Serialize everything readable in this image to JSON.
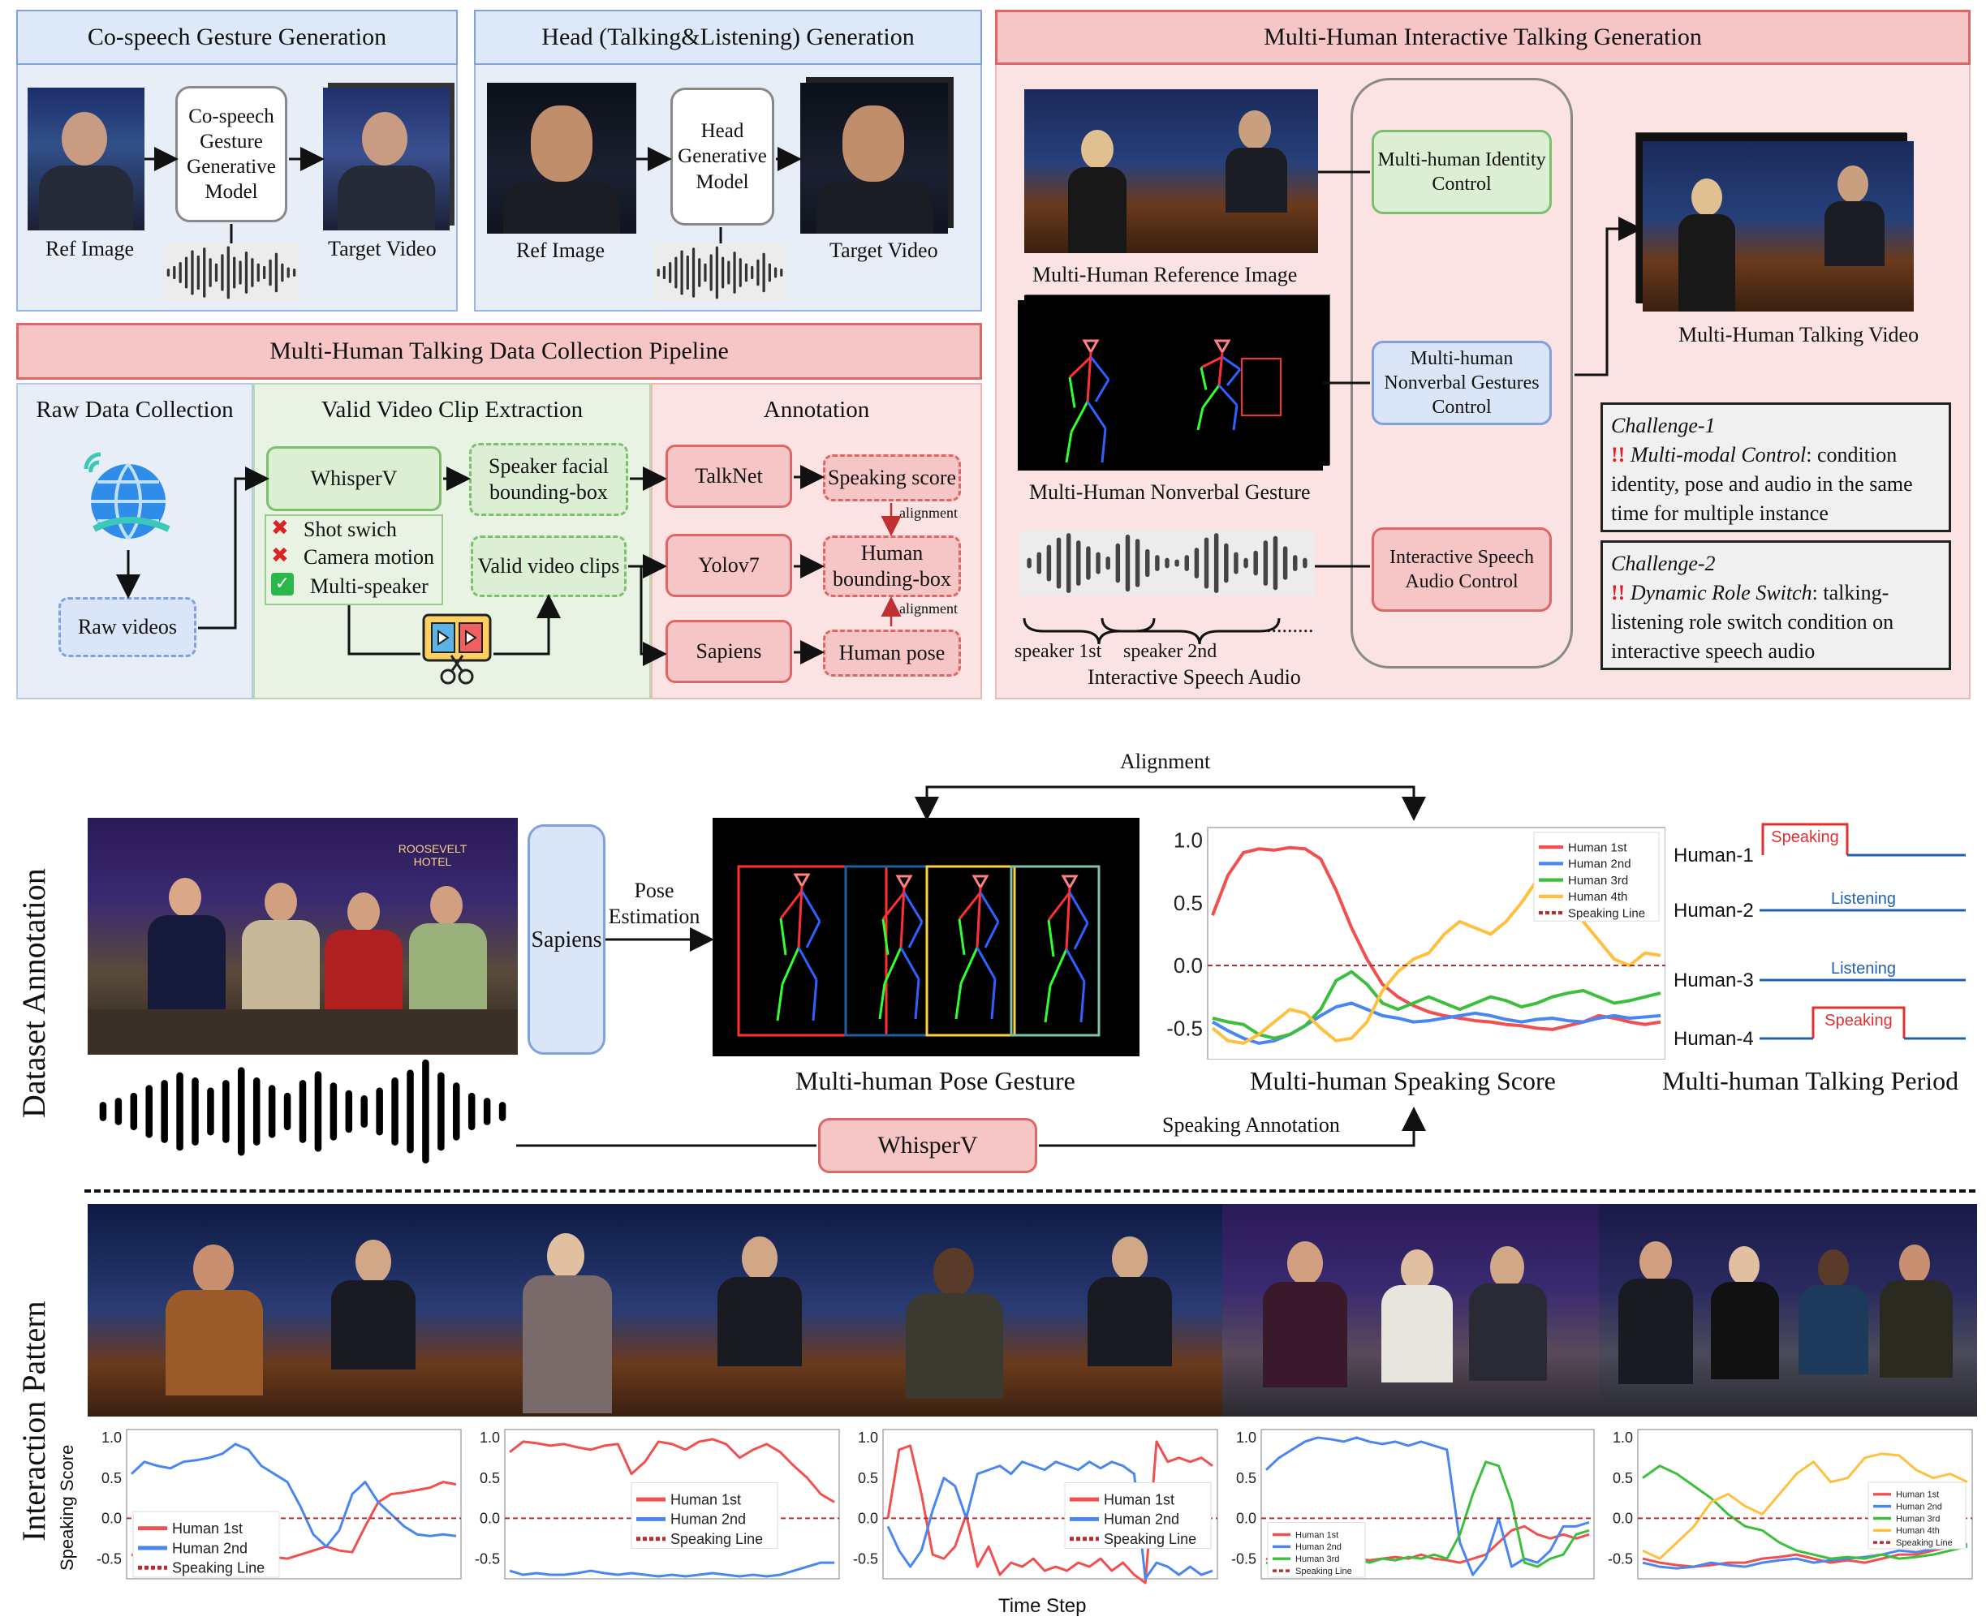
{
  "top": {
    "gesture": {
      "title": "Co-speech Gesture Generation",
      "model": "Co-speech Gesture Generative Model",
      "ref": "Ref Image",
      "target": "Target Video"
    },
    "head": {
      "title": "Head (Talking&Listening) Generation",
      "model": "Head Generative Model",
      "ref": "Ref Image",
      "target": "Target Video"
    },
    "pipeline": {
      "title": "Multi-Human Talking Data Collection Pipeline",
      "raw_header": "Raw Data Collection",
      "valid_header": "Valid Video Clip Extraction",
      "anno_header": "Annotation",
      "raw_videos": "Raw videos",
      "whisperv": "WhisperV",
      "speaker_bbox": "Speaker facial bounding-box",
      "valid_clips": "Valid video clips",
      "filters": [
        "Shot swich",
        "Camera motion",
        "Multi-speaker"
      ],
      "talknet": "TalkNet",
      "yolov7": "Yolov7",
      "sapiens": "Sapiens",
      "speaking_score": "Speaking score",
      "human_bbox": "Human bounding-box",
      "human_pose": "Human pose",
      "alignment": "alignment"
    },
    "interactive": {
      "title": "Multi-Human Interactive Talking Generation",
      "ref_image_label": "Multi-Human Reference Image",
      "gesture_label": "Multi-Human Nonverbal Gesture",
      "speaker1": "speaker 1st",
      "speaker2": "speaker 2nd",
      "audio_label": "Interactive Speech Audio",
      "dots": ".........",
      "identity_control": "Multi-human Identity Control",
      "gesture_control": "Multi-human Nonverbal Gestures Control",
      "audio_control": "Interactive Speech Audio Control",
      "video_label": "Multi-Human Talking Video",
      "challenge1_title": "Challenge-1",
      "challenge1_key": "Multi-modal Control",
      "challenge1_text": ": condition identity, pose and audio in the same time for multiple instance",
      "challenge2_title": "Challenge-2",
      "challenge2_key": "Dynamic Role Switch",
      "challenge2_text": ": talking-listening role switch condition on interactive speech audio",
      "bang": "!!"
    }
  },
  "middle": {
    "side_label": "Dataset Annotation",
    "sapiens": "Sapiens",
    "pose_estimation": "Pose Estimation",
    "alignment": "Alignment",
    "whisperv": "WhisperV",
    "speaking_annotation": "Speaking Annotation",
    "pose_caption": "Multi-human Pose Gesture",
    "score_caption": "Multi-human Speaking Score",
    "period_caption": "Multi-human Talking Period",
    "period_rows": [
      {
        "human": "Human-1",
        "state": "Speaking"
      },
      {
        "human": "Human-2",
        "state": "Listening"
      },
      {
        "human": "Human-3",
        "state": "Listening"
      },
      {
        "human": "Human-4",
        "state": "Speaking"
      }
    ],
    "sign": "ROOSEVELT HOTEL"
  },
  "bottom": {
    "side_label": "Interaction Pattern",
    "y_label": "Speaking Score",
    "x_label": "Time Step"
  },
  "colors": {
    "red": "#f05050",
    "blue": "#4a86f0",
    "green": "#3cbf3c",
    "orange": "#ffc040",
    "speaking_line": "#b03030",
    "pink_panel": "#fbe3e3",
    "blue_panel": "#e8eef8",
    "green_panel": "#e8f3e4"
  },
  "chart_data": [
    {
      "type": "line",
      "ylim": [
        -0.75,
        1.1
      ],
      "yticks": [
        "1.0",
        "0.5",
        "0.0",
        "-0.5"
      ],
      "legend_position": "top-right",
      "series": [
        {
          "name": "Human 1st",
          "values": [
            0.4,
            0.72,
            0.9,
            0.93,
            0.92,
            0.94,
            0.93,
            0.85,
            0.6,
            0.3,
            0.05,
            -0.15,
            -0.25,
            -0.32,
            -0.37,
            -0.4,
            -0.42,
            -0.44,
            -0.45,
            -0.47,
            -0.48,
            -0.5,
            -0.51,
            -0.48,
            -0.45,
            -0.4,
            -0.42,
            -0.45,
            -0.47,
            -0.45
          ]
        },
        {
          "name": "Human 2nd",
          "values": [
            -0.45,
            -0.52,
            -0.58,
            -0.62,
            -0.6,
            -0.55,
            -0.48,
            -0.4,
            -0.33,
            -0.3,
            -0.35,
            -0.4,
            -0.42,
            -0.45,
            -0.44,
            -0.42,
            -0.4,
            -0.38,
            -0.4,
            -0.43,
            -0.45,
            -0.43,
            -0.42,
            -0.44,
            -0.45,
            -0.42,
            -0.4,
            -0.42,
            -0.41,
            -0.4
          ]
        },
        {
          "name": "Human 3rd",
          "values": [
            -0.42,
            -0.45,
            -0.47,
            -0.55,
            -0.58,
            -0.55,
            -0.48,
            -0.35,
            -0.12,
            -0.05,
            -0.15,
            -0.3,
            -0.35,
            -0.3,
            -0.25,
            -0.3,
            -0.35,
            -0.3,
            -0.25,
            -0.28,
            -0.33,
            -0.3,
            -0.25,
            -0.22,
            -0.2,
            -0.25,
            -0.3,
            -0.28,
            -0.25,
            -0.22
          ]
        },
        {
          "name": "Human 4th",
          "values": [
            -0.5,
            -0.6,
            -0.62,
            -0.55,
            -0.45,
            -0.35,
            -0.38,
            -0.5,
            -0.6,
            -0.58,
            -0.45,
            -0.2,
            -0.05,
            0.05,
            0.1,
            0.25,
            0.35,
            0.3,
            0.25,
            0.35,
            0.5,
            0.68,
            0.72,
            0.55,
            0.35,
            0.2,
            0.05,
            0.0,
            0.1,
            0.08
          ]
        },
        {
          "name": "Speaking Line",
          "values": [
            0.0,
            0.0
          ]
        }
      ]
    },
    {
      "type": "line",
      "ylim": [
        -0.75,
        1.1
      ],
      "yticks": [
        "1.0",
        "0.5",
        "0.0",
        "-0.5"
      ],
      "legend_position": "bottom-left",
      "series": [
        {
          "name": "Human 1st",
          "values": [
            -0.45,
            -0.5,
            -0.55,
            -0.52,
            -0.55,
            -0.58,
            -0.52,
            -0.5,
            -0.55,
            -0.5,
            -0.45,
            -0.48,
            -0.5,
            -0.45,
            -0.4,
            -0.35,
            -0.4,
            -0.42,
            -0.1,
            0.2,
            0.3,
            0.32,
            0.35,
            0.38,
            0.45,
            0.42
          ]
        },
        {
          "name": "Human 2nd",
          "values": [
            0.55,
            0.7,
            0.65,
            0.62,
            0.7,
            0.72,
            0.75,
            0.8,
            0.92,
            0.85,
            0.65,
            0.55,
            0.45,
            0.15,
            -0.2,
            -0.35,
            -0.15,
            0.3,
            0.45,
            0.2,
            0.05,
            -0.1,
            -0.2,
            -0.22,
            -0.2,
            -0.22
          ]
        },
        {
          "name": "Speaking Line",
          "values": [
            0.0,
            0.0
          ]
        }
      ]
    },
    {
      "type": "line",
      "ylim": [
        -0.75,
        1.1
      ],
      "yticks": [
        "1.0",
        "0.5",
        "0.0",
        "-0.5"
      ],
      "legend_position": "center",
      "series": [
        {
          "name": "Human 1st",
          "values": [
            0.82,
            0.95,
            0.93,
            0.9,
            0.92,
            0.88,
            0.85,
            0.9,
            0.92,
            0.55,
            0.7,
            0.95,
            0.92,
            0.85,
            0.95,
            0.98,
            0.92,
            0.75,
            0.85,
            0.92,
            0.82,
            0.65,
            0.5,
            0.3,
            0.2
          ]
        },
        {
          "name": "Human 2nd",
          "values": [
            -0.65,
            -0.7,
            -0.68,
            -0.7,
            -0.7,
            -0.68,
            -0.65,
            -0.68,
            -0.7,
            -0.68,
            -0.7,
            -0.72,
            -0.7,
            -0.72,
            -0.7,
            -0.68,
            -0.7,
            -0.72,
            -0.7,
            -0.72,
            -0.7,
            -0.65,
            -0.6,
            -0.55,
            -0.55
          ]
        },
        {
          "name": "Speaking Line",
          "values": [
            0.0,
            0.0
          ]
        }
      ]
    },
    {
      "type": "line",
      "ylim": [
        -0.75,
        1.1
      ],
      "yticks": [
        "1.0",
        "0.5",
        "0.0",
        "-0.5"
      ],
      "legend_position": "right",
      "series": [
        {
          "name": "Human 1st",
          "values": [
            0.0,
            0.85,
            0.9,
            0.3,
            -0.45,
            -0.5,
            -0.35,
            0.05,
            -0.6,
            -0.35,
            -0.7,
            -0.55,
            -0.6,
            -0.5,
            -0.65,
            -0.6,
            -0.65,
            -0.55,
            -0.6,
            -0.5,
            -0.65,
            -0.55,
            -0.7,
            -0.8,
            0.95,
            0.7,
            0.75,
            0.7,
            0.75,
            0.65
          ]
        },
        {
          "name": "Human 2nd",
          "values": [
            -0.1,
            -0.4,
            -0.6,
            -0.4,
            0.1,
            0.5,
            0.4,
            0.0,
            0.55,
            0.6,
            0.65,
            0.55,
            0.7,
            0.65,
            0.6,
            0.7,
            0.65,
            0.6,
            0.7,
            0.62,
            0.7,
            0.65,
            0.55,
            -0.75,
            -0.55,
            -0.6,
            -0.7,
            -0.6,
            -0.7,
            -0.65
          ]
        },
        {
          "name": "Speaking Line",
          "values": [
            0.0,
            0.0
          ]
        }
      ]
    },
    {
      "type": "line",
      "ylim": [
        -0.75,
        1.1
      ],
      "yticks": [
        "1.0",
        "0.5",
        "0.0",
        "-0.5"
      ],
      "legend_position": "bottom-left",
      "series": [
        {
          "name": "Human 1st",
          "values": [
            -0.5,
            -0.55,
            -0.52,
            -0.5,
            -0.55,
            -0.5,
            -0.48,
            -0.5,
            -0.52,
            -0.5,
            -0.48,
            -0.5,
            -0.45,
            -0.5,
            -0.52,
            -0.55,
            -0.5,
            -0.45,
            -0.3,
            -0.15,
            -0.1,
            -0.2,
            -0.25,
            -0.2,
            -0.25,
            -0.2
          ]
        },
        {
          "name": "Human 2nd",
          "values": [
            0.6,
            0.75,
            0.85,
            0.95,
            1.0,
            0.98,
            0.95,
            1.0,
            0.95,
            0.92,
            0.95,
            0.9,
            0.95,
            0.9,
            0.85,
            -0.3,
            -0.7,
            -0.5,
            0.0,
            -0.6,
            -0.5,
            -0.55,
            -0.4,
            -0.1,
            -0.1,
            -0.05
          ]
        },
        {
          "name": "Human 3rd",
          "values": [
            -0.55,
            -0.6,
            -0.55,
            -0.6,
            -0.55,
            -0.58,
            -0.55,
            -0.5,
            -0.55,
            -0.5,
            -0.52,
            -0.48,
            -0.5,
            -0.45,
            -0.5,
            -0.2,
            0.3,
            0.7,
            0.65,
            0.2,
            -0.55,
            -0.6,
            -0.5,
            -0.45,
            -0.2,
            -0.15
          ]
        },
        {
          "name": "Speaking Line",
          "values": [
            0.0,
            0.0
          ]
        }
      ]
    },
    {
      "type": "line",
      "ylim": [
        -0.75,
        1.1
      ],
      "yticks": [
        "1.0",
        "0.5",
        "0.0",
        "-0.5"
      ],
      "legend_position": "right",
      "series": [
        {
          "name": "Human 1st",
          "values": [
            -0.5,
            -0.55,
            -0.58,
            -0.6,
            -0.58,
            -0.55,
            -0.55,
            -0.5,
            -0.48,
            -0.45,
            -0.5,
            -0.55,
            -0.52,
            -0.55,
            -0.5,
            -0.45,
            -0.45,
            -0.4,
            -0.35,
            -0.35
          ]
        },
        {
          "name": "Human 2nd",
          "values": [
            -0.55,
            -0.6,
            -0.62,
            -0.6,
            -0.55,
            -0.58,
            -0.6,
            -0.55,
            -0.52,
            -0.5,
            -0.55,
            -0.52,
            -0.5,
            -0.48,
            -0.45,
            -0.4,
            -0.42,
            -0.38,
            -0.35,
            -0.32
          ]
        },
        {
          "name": "Human 3rd",
          "values": [
            0.5,
            0.65,
            0.55,
            0.4,
            0.25,
            0.05,
            -0.1,
            -0.15,
            -0.3,
            -0.4,
            -0.45,
            -0.5,
            -0.48,
            -0.5,
            -0.45,
            -0.5,
            -0.48,
            -0.45,
            -0.4,
            -0.35
          ]
        },
        {
          "name": "Human 4th",
          "values": [
            -0.4,
            -0.5,
            -0.3,
            -0.1,
            0.2,
            0.3,
            0.15,
            0.05,
            0.3,
            0.55,
            0.7,
            0.45,
            0.5,
            0.75,
            0.8,
            0.78,
            0.6,
            0.5,
            0.55,
            0.45
          ]
        },
        {
          "name": "Speaking Line",
          "values": [
            0.0,
            0.0
          ]
        }
      ]
    }
  ]
}
